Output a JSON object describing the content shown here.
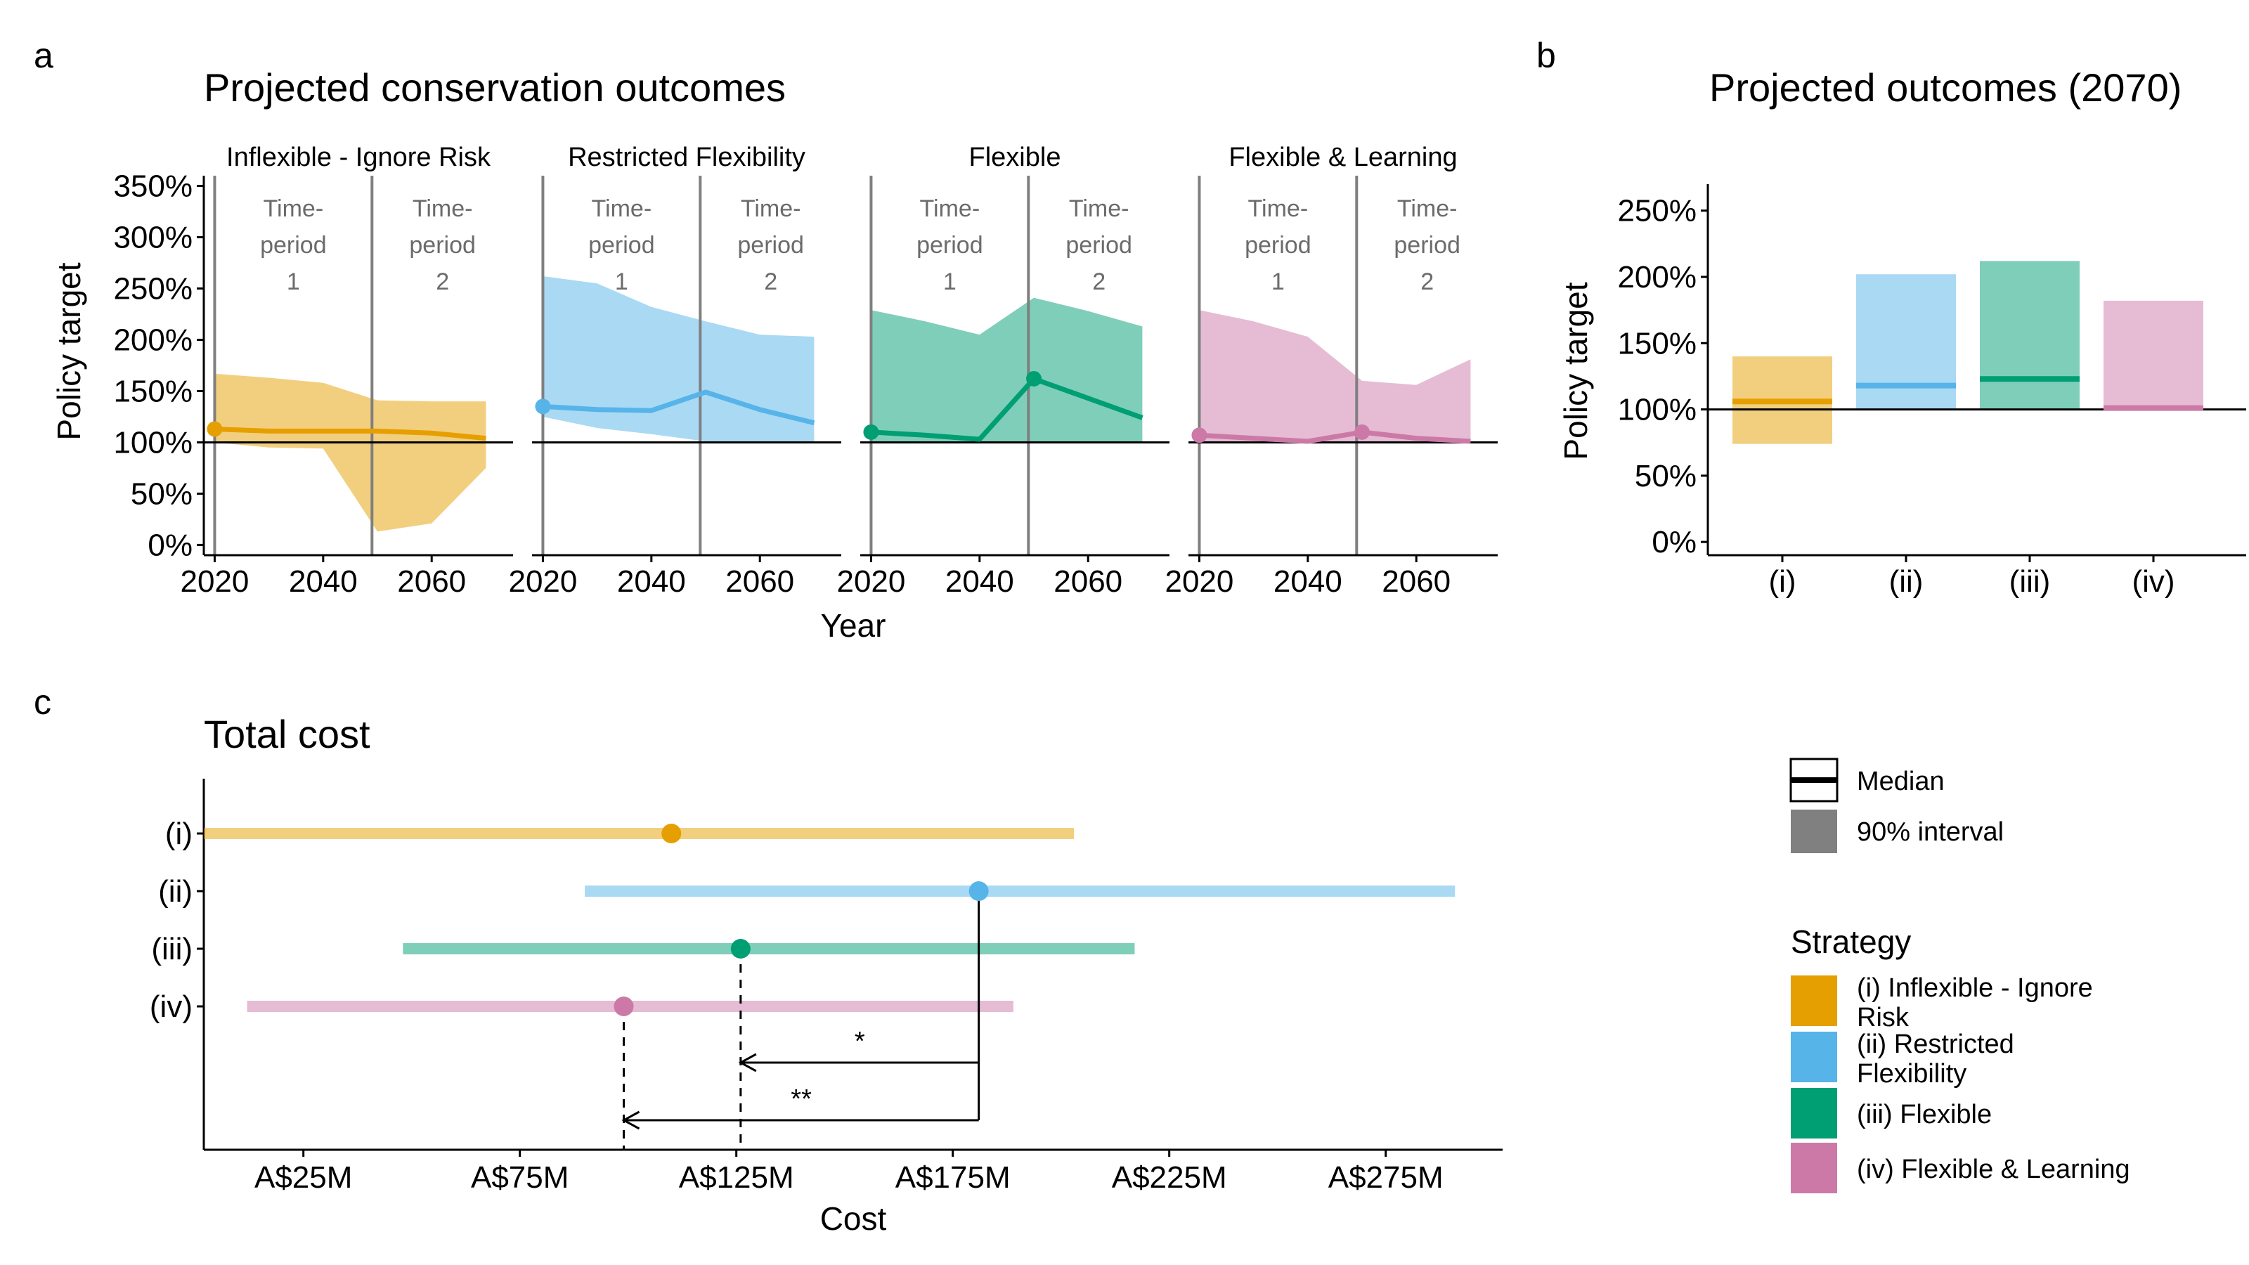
{
  "panel_letters": [
    "a",
    "b",
    "c"
  ],
  "colors": {
    "inflexible": "#E69F00",
    "restricted": "#56B4E9",
    "flexible": "#009E73",
    "learning": "#CC79A7",
    "median_line": "#000000",
    "interval_swatch": "#808080",
    "period_divider": "#7f7f7f",
    "period_text": "#6b6b6b"
  },
  "strategies": [
    {
      "key": "inflexible",
      "roman": "(i)",
      "facet": "Inflexible - Ignore Risk",
      "legend_line1": "(i) Inflexible - Ignore",
      "legend_line2": "Risk"
    },
    {
      "key": "restricted",
      "roman": "(ii)",
      "facet": "Restricted Flexibility",
      "legend_line1": "(ii) Restricted",
      "legend_line2": "Flexibility"
    },
    {
      "key": "flexible",
      "roman": "(iii)",
      "facet": "Flexible",
      "legend_line1": "(iii) Flexible",
      "legend_line2": ""
    },
    {
      "key": "learning",
      "roman": "(iv)",
      "facet": "Flexible & Learning",
      "legend_line1": "(iv) Flexible & Learning",
      "legend_line2": ""
    }
  ],
  "time_period_labels": {
    "p1": [
      "Time-",
      "period",
      "1"
    ],
    "p2": [
      "Time-",
      "period",
      "2"
    ]
  },
  "legend": {
    "median": "Median",
    "interval": "90% interval",
    "strategy_title": "Strategy"
  },
  "chart_data": [
    {
      "id": "a",
      "type": "line",
      "title": "Projected conservation outcomes",
      "xlabel": "Year",
      "ylabel": "Policy target",
      "xlim": [
        2018,
        2075
      ],
      "ylim": [
        -10,
        360
      ],
      "x_ticks": [
        2020,
        2040,
        2060
      ],
      "x_tick_labels": [
        "2020",
        "2040",
        "2060"
      ],
      "y_ticks": [
        0,
        50,
        100,
        150,
        200,
        250,
        300,
        350
      ],
      "y_tick_labels": [
        "0%",
        "50%",
        "100%",
        "150%",
        "200%",
        "250%",
        "300%",
        "350%"
      ],
      "reference_line": 100,
      "period_boundaries": [
        2020,
        2049
      ],
      "facets": [
        {
          "strategy": "inflexible",
          "x": [
            2020,
            2030,
            2040,
            2050,
            2060,
            2070
          ],
          "median": [
            113,
            111,
            111,
            111,
            109,
            104
          ],
          "lower": [
            100,
            95,
            94,
            13,
            21,
            75
          ],
          "upper": [
            167,
            163,
            158,
            141,
            140,
            140
          ],
          "start_point": [
            2020,
            113
          ]
        },
        {
          "strategy": "restricted",
          "x": [
            2020,
            2030,
            2040,
            2050,
            2060,
            2070
          ],
          "median": [
            135,
            132,
            131,
            149,
            132,
            119
          ],
          "lower": [
            125,
            114,
            108,
            101,
            100,
            100
          ],
          "upper": [
            262,
            255,
            232,
            218,
            205,
            203
          ],
          "start_point": [
            2020,
            135
          ]
        },
        {
          "strategy": "flexible",
          "x": [
            2020,
            2030,
            2040,
            2050,
            2060,
            2070
          ],
          "median": [
            110,
            107,
            103,
            162,
            143,
            124
          ],
          "lower": [
            100,
            100,
            101,
            101,
            100,
            100
          ],
          "upper": [
            229,
            218,
            205,
            241,
            228,
            213
          ],
          "start_point": [
            2020,
            110
          ],
          "highlight_point": [
            2050,
            162
          ]
        },
        {
          "strategy": "learning",
          "x": [
            2020,
            2030,
            2040,
            2050,
            2060,
            2070
          ],
          "median": [
            107,
            104,
            101,
            110,
            104,
            101
          ],
          "lower": [
            100,
            100,
            100,
            100,
            100,
            100
          ],
          "upper": [
            229,
            218,
            203,
            160,
            156,
            181
          ],
          "start_point": [
            2020,
            107
          ],
          "highlight_point": [
            2050,
            110
          ]
        }
      ]
    },
    {
      "id": "b",
      "type": "bar",
      "title": "Projected outcomes (2070)",
      "xlabel": "",
      "ylabel": "Policy target",
      "ylim": [
        -10,
        270
      ],
      "y_ticks": [
        0,
        50,
        100,
        150,
        200,
        250
      ],
      "y_tick_labels": [
        "0%",
        "50%",
        "100%",
        "150%",
        "200%",
        "250%"
      ],
      "categories": [
        "(i)",
        "(ii)",
        "(iii)",
        "(iv)"
      ],
      "reference_line": 100,
      "series": [
        {
          "strategy": "inflexible",
          "lower": 74,
          "upper": 140,
          "median": 106
        },
        {
          "strategy": "restricted",
          "lower": 100,
          "upper": 202,
          "median": 118
        },
        {
          "strategy": "flexible",
          "lower": 100,
          "upper": 212,
          "median": 123
        },
        {
          "strategy": "learning",
          "lower": 100,
          "upper": 182,
          "median": 101
        }
      ]
    },
    {
      "id": "c",
      "type": "scatter",
      "title": "Total cost",
      "xlabel": "Cost",
      "ylabel": "",
      "xlim": [
        2,
        302
      ],
      "x_ticks": [
        25,
        75,
        125,
        175,
        225,
        275
      ],
      "x_tick_labels": [
        "A$25M",
        "A$75M",
        "A$125M",
        "A$175M",
        "A$225M",
        "A$275M"
      ],
      "categories": [
        "(i)",
        "(ii)",
        "(iii)",
        "(iv)"
      ],
      "series": [
        {
          "strategy": "inflexible",
          "lower": 2,
          "upper": 203,
          "median": 110
        },
        {
          "strategy": "restricted",
          "lower": 90,
          "upper": 291,
          "median": 181
        },
        {
          "strategy": "flexible",
          "lower": 48,
          "upper": 217,
          "median": 126
        },
        {
          "strategy": "learning",
          "lower": 12,
          "upper": 189,
          "median": 99
        }
      ],
      "comparisons": [
        {
          "from": 181,
          "to": 126,
          "label": "*"
        },
        {
          "from": 181,
          "to": 99,
          "label": "**"
        }
      ]
    }
  ]
}
